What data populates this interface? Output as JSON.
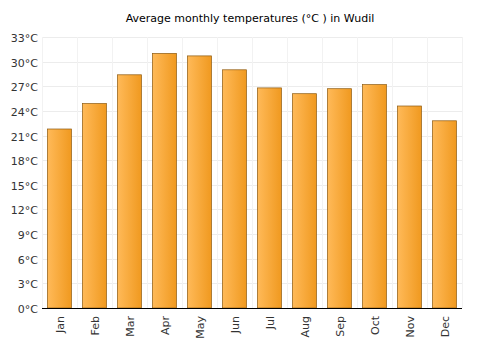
{
  "chart_data": {
    "type": "bar",
    "title": "Average monthly temperatures (°C ) in Wudil",
    "categories": [
      "Jan",
      "Feb",
      "Mar",
      "Apr",
      "May",
      "Jun",
      "Jul",
      "Aug",
      "Sep",
      "Oct",
      "Nov",
      "Dec"
    ],
    "values": [
      21.8,
      24.9,
      28.4,
      31.0,
      30.7,
      29.0,
      26.8,
      26.1,
      26.7,
      27.2,
      24.6,
      22.8
    ],
    "color": "#ffa321",
    "ylim": [
      0,
      33
    ],
    "yticks": [
      {
        "value": 0,
        "label": "0°C"
      },
      {
        "value": 3,
        "label": "3°C"
      },
      {
        "value": 6,
        "label": "6°C"
      },
      {
        "value": 9,
        "label": "9°C"
      },
      {
        "value": 12,
        "label": "12°C"
      },
      {
        "value": 15,
        "label": "15°C"
      },
      {
        "value": 18,
        "label": "18°C"
      },
      {
        "value": 21,
        "label": "21°C"
      },
      {
        "value": 24,
        "label": "24°C"
      },
      {
        "value": 27,
        "label": "27°C"
      },
      {
        "value": 30,
        "label": "30°C"
      },
      {
        "value": 33,
        "label": "33°C"
      }
    ],
    "grid": true
  }
}
